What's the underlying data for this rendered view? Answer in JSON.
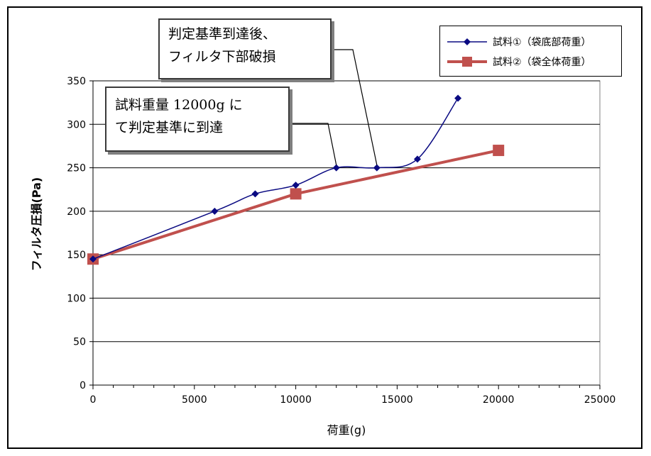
{
  "chart_data": {
    "type": "line",
    "xlabel": "荷重(g)",
    "ylabel": "フィルタ圧損(Pa)",
    "xlim": [
      0,
      25000
    ],
    "ylim": [
      0,
      350
    ],
    "x_ticks": [
      "0",
      "5000",
      "10000",
      "15000",
      "20000",
      "25000"
    ],
    "y_ticks": [
      "0",
      "50",
      "100",
      "150",
      "200",
      "250",
      "300",
      "350"
    ],
    "grid": "horizontal",
    "legend_position": "top-right",
    "series": [
      {
        "name": "試料①（袋底部荷重）",
        "color": "#0a0a82",
        "marker": "diamond",
        "smooth": true,
        "x": [
          0,
          6000,
          8000,
          10000,
          12000,
          14000,
          16000,
          18000
        ],
        "y": [
          145,
          200,
          220,
          230,
          250,
          250,
          260,
          330
        ]
      },
      {
        "name": "試料②（袋全体荷重）",
        "color": "#c0504d",
        "marker": "square",
        "smooth": false,
        "x": [
          0,
          10000,
          20000
        ],
        "y": [
          145,
          220,
          270
        ]
      }
    ],
    "annotations": [
      {
        "lines": [
          "判定基準到達後、",
          "フィルタ下部破損"
        ],
        "points_to": [
          14000,
          250
        ]
      },
      {
        "lines": [
          "試料重量 12000g に",
          "て判定基準に到達"
        ],
        "points_to": [
          12000,
          250
        ]
      }
    ]
  }
}
